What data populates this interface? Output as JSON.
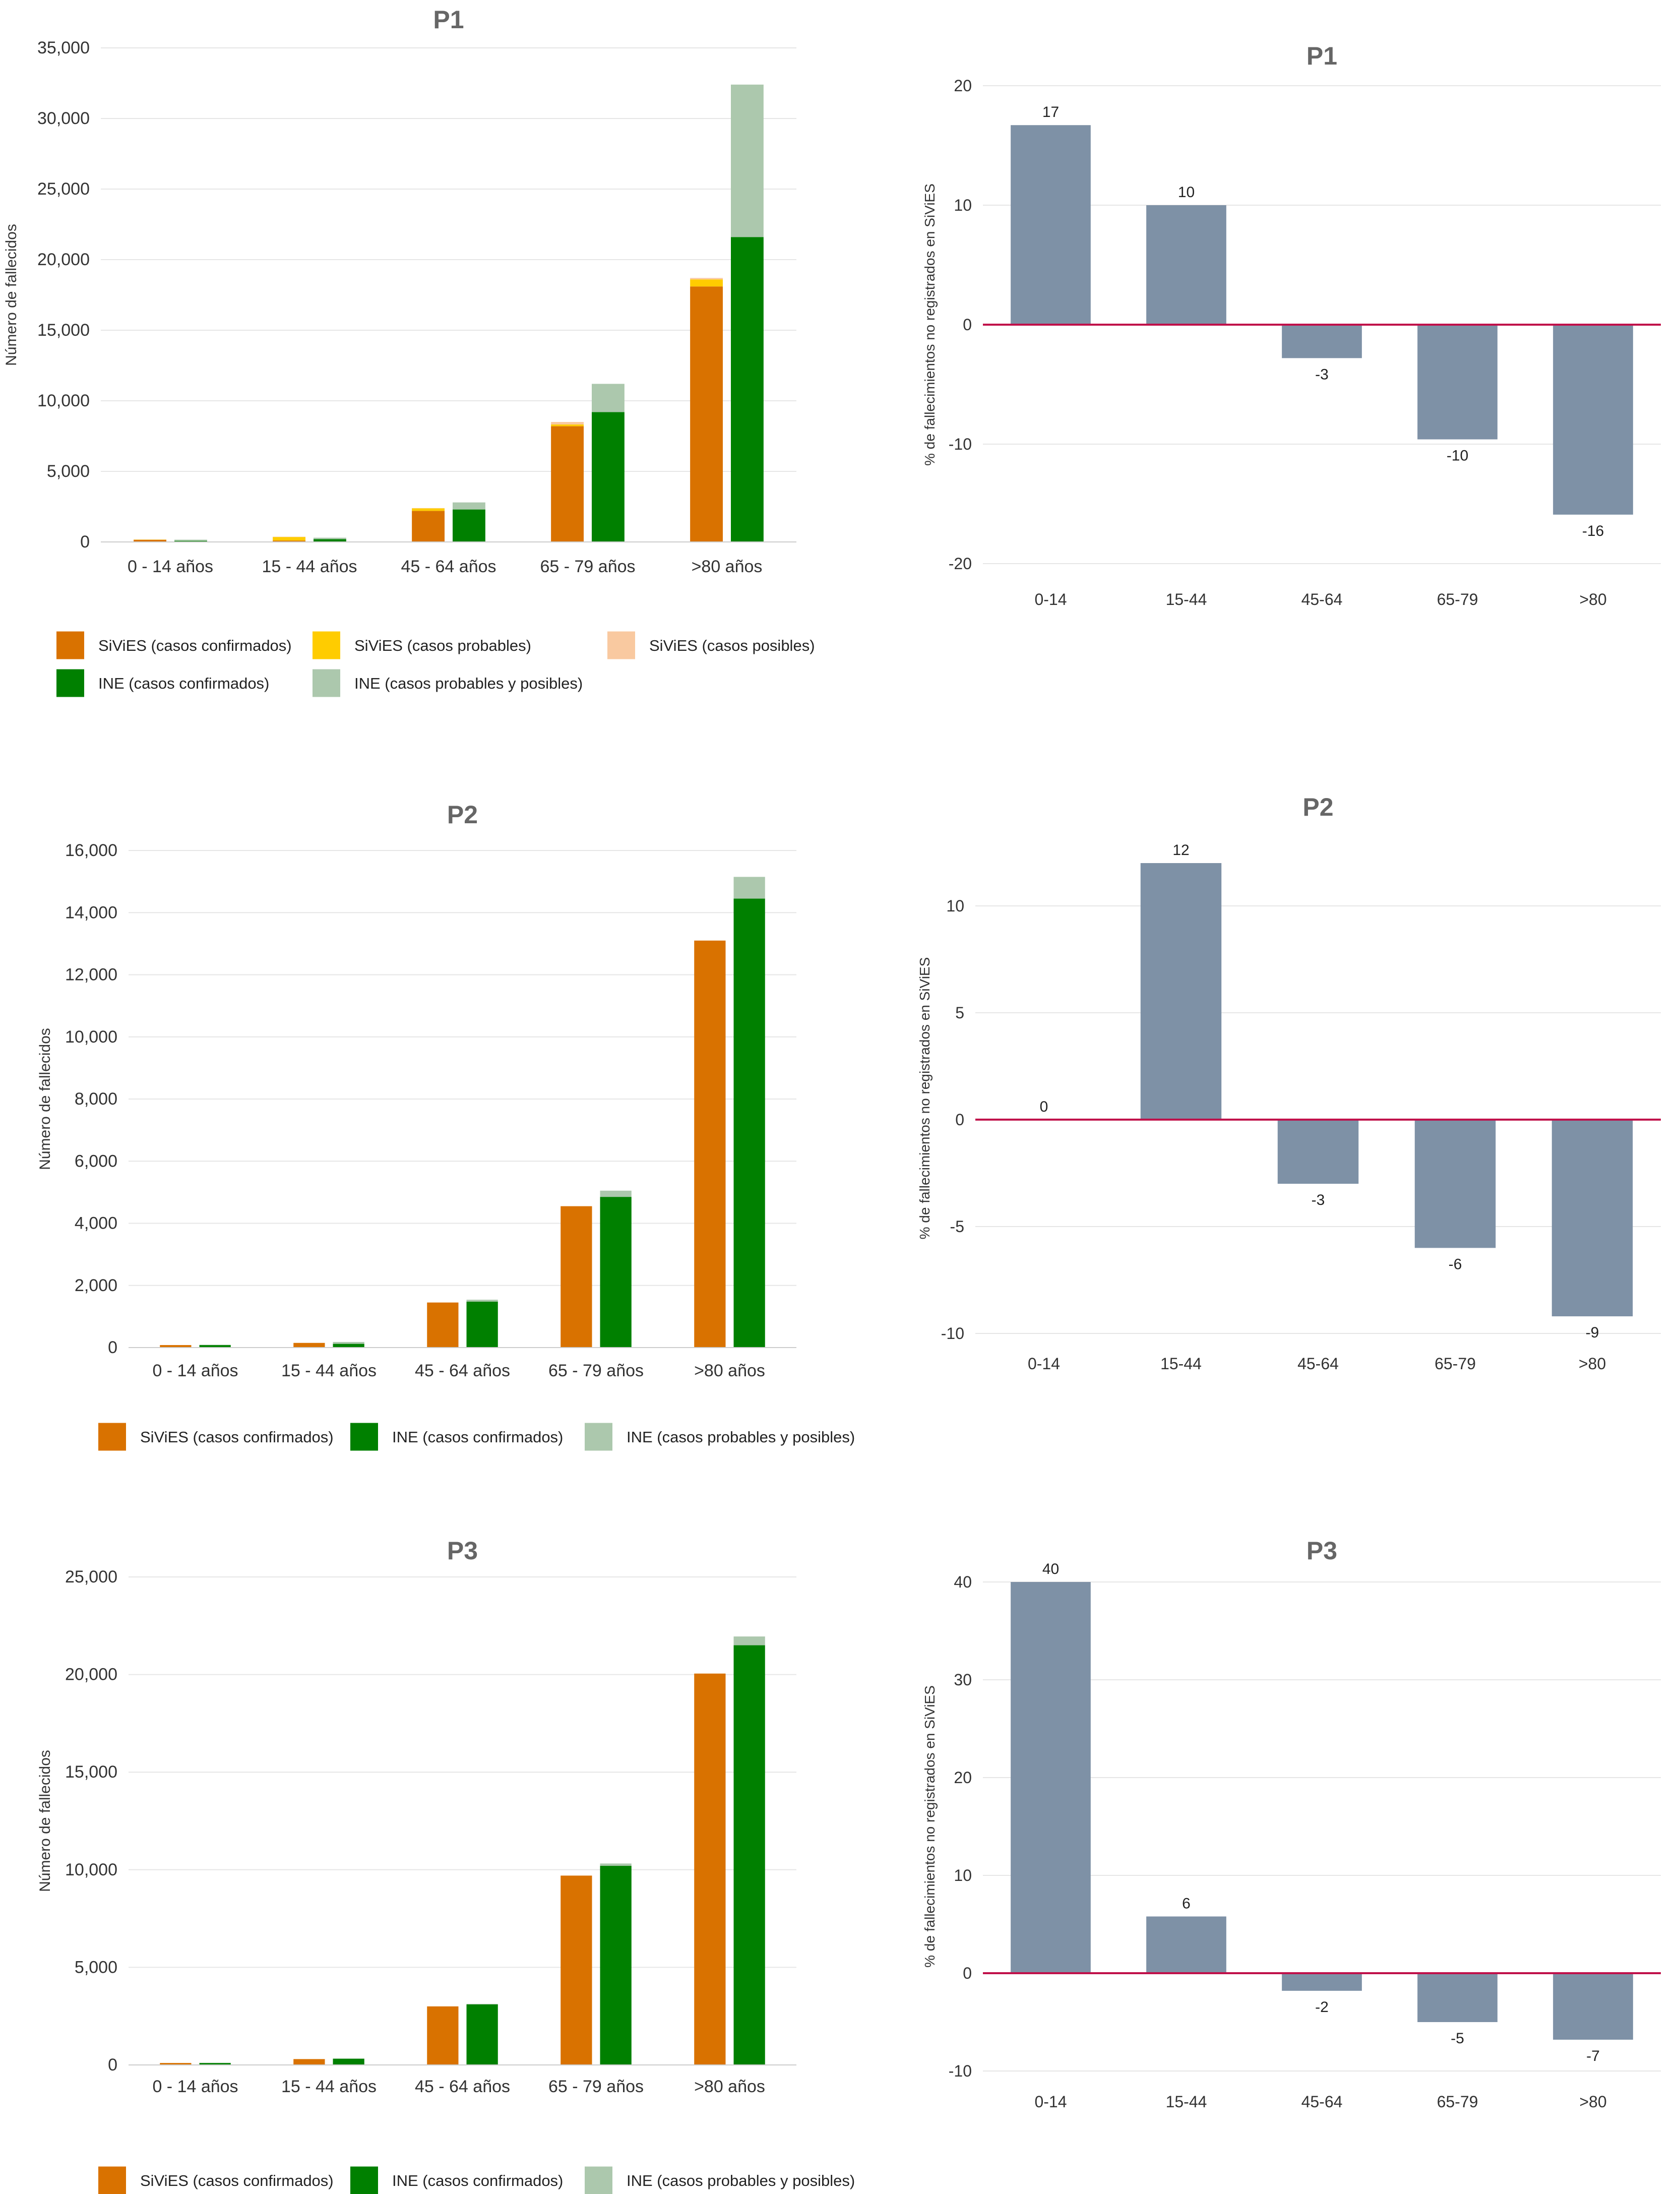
{
  "colors": {
    "sivies_confirmed": "#D97200",
    "sivies_probable": "#FFCC00",
    "sivies_possible": "#F9C9A0",
    "ine_confirmed": "#008000",
    "ine_probable_possible": "#ACC8AD",
    "diff_bar": "#7E91A6",
    "zero_line": "#C0104A",
    "grid": "#E6E6E6",
    "title": "#666666"
  },
  "legend_labels": {
    "sivies_confirmed": "SiViES (casos confirmados)",
    "sivies_probable": "SiViES (casos probables)",
    "sivies_possible": "SiViES (casos posibles)",
    "ine_confirmed": "INE (casos confirmados)",
    "ine_probable_possible": "INE (casos probables y posibles)"
  },
  "chart_data": [
    {
      "id": "p1_counts",
      "type": "bar",
      "title": "P1",
      "ylabel": "Número de fallecidos",
      "ylim": [
        0,
        35000
      ],
      "yticks": [
        "0",
        "5,000",
        "10,000",
        "15,000",
        "20,000",
        "25,000",
        "30,000",
        "35,000"
      ],
      "categories": [
        "0 - 14 años",
        "15 - 44 años",
        "45 - 64 años",
        "65 - 79 años",
        ">80 años"
      ],
      "series": [
        {
          "name": "SiViES (casos confirmados)",
          "key": "sivies_confirmed",
          "stack": "SiViES",
          "values": [
            150,
            100,
            2200,
            8200,
            18100
          ]
        },
        {
          "name": "SiViES (casos probables)",
          "key": "sivies_probable",
          "stack": "SiViES",
          "values": [
            20,
            250,
            180,
            120,
            500
          ]
        },
        {
          "name": "SiViES (casos posibles)",
          "key": "sivies_possible",
          "stack": "SiViES",
          "values": [
            10,
            20,
            20,
            180,
            100
          ]
        },
        {
          "name": "INE (casos confirmados)",
          "key": "ine_confirmed",
          "stack": "INE",
          "values": [
            80,
            200,
            2300,
            9200,
            21600
          ]
        },
        {
          "name": "INE (casos probables y posibles)",
          "key": "ine_probable_possible",
          "stack": "INE",
          "values": [
            80,
            100,
            500,
            2000,
            10800
          ]
        }
      ],
      "legend": [
        [
          "sivies_confirmed",
          "sivies_probable",
          "sivies_possible"
        ],
        [
          "ine_confirmed",
          "ine_probable_possible"
        ]
      ]
    },
    {
      "id": "p1_diff",
      "type": "bar",
      "title": "P1",
      "ylabel": "% de fallecimientos no registrados en SiViES",
      "ylim": [
        -20,
        20
      ],
      "yticks": [
        "-20",
        "-10",
        "0",
        "10",
        "20"
      ],
      "categories": [
        "0-14",
        "15-44",
        "45-64",
        "65-79",
        ">80"
      ],
      "values": [
        16.7,
        10,
        -2.8,
        -9.6,
        -15.9
      ],
      "data_labels": [
        "17",
        "10",
        "-3",
        "-10",
        "-16"
      ]
    },
    {
      "id": "p2_counts",
      "type": "bar",
      "title": "P2",
      "ylabel": "Número de fallecidos",
      "ylim": [
        0,
        16000
      ],
      "yticks": [
        "0",
        "2,000",
        "4,000",
        "6,000",
        "8,000",
        "10,000",
        "12,000",
        "14,000",
        "16,000"
      ],
      "categories": [
        "0 - 14 años",
        "15 - 44 años",
        "45 - 64 años",
        "65 - 79 años",
        ">80 años"
      ],
      "series": [
        {
          "name": "SiViES (casos confirmados)",
          "key": "sivies_confirmed",
          "stack": "SiViES",
          "values": [
            80,
            150,
            1450,
            4550,
            13100
          ]
        },
        {
          "name": "INE (casos confirmados)",
          "key": "ine_confirmed",
          "stack": "INE",
          "values": [
            80,
            120,
            1480,
            4850,
            14450
          ]
        },
        {
          "name": "INE (casos probables y posibles)",
          "key": "ine_probable_possible",
          "stack": "INE",
          "values": [
            10,
            60,
            60,
            200,
            700
          ]
        }
      ],
      "legend": [
        [
          "sivies_confirmed",
          "ine_confirmed",
          "ine_probable_possible"
        ]
      ]
    },
    {
      "id": "p2_diff",
      "type": "bar",
      "title": "P2",
      "ylabel": "% de fallecimientos no registrados en SiViES",
      "ylim": [
        -10,
        12
      ],
      "yticks": [
        "-10",
        "-5",
        "0",
        "5",
        "10"
      ],
      "categories": [
        "0-14",
        "15-44",
        "45-64",
        "65-79",
        ">80"
      ],
      "values": [
        0,
        12,
        -3,
        -6,
        -9.2
      ],
      "data_labels": [
        "0",
        "12",
        "-3",
        "-6",
        "-9"
      ]
    },
    {
      "id": "p3_counts",
      "type": "bar",
      "title": "P3",
      "ylabel": "Número de fallecidos",
      "ylim": [
        0,
        25000
      ],
      "yticks": [
        "0",
        "5,000",
        "10,000",
        "15,000",
        "20,000",
        "25,000"
      ],
      "categories": [
        "0 - 14 años",
        "15 - 44 años",
        "45 - 64 años",
        "65 - 79 años",
        ">80 años"
      ],
      "series": [
        {
          "name": "SiViES (casos confirmados)",
          "key": "sivies_confirmed",
          "stack": "SiViES",
          "values": [
            100,
            300,
            3000,
            9700,
            20050
          ]
        },
        {
          "name": "INE (casos confirmados)",
          "key": "ine_confirmed",
          "stack": "INE",
          "values": [
            100,
            320,
            3100,
            10200,
            21500
          ]
        },
        {
          "name": "INE (casos probables y posibles)",
          "key": "ine_probable_possible",
          "stack": "INE",
          "values": [
            10,
            10,
            30,
            120,
            450
          ]
        }
      ],
      "legend": [
        [
          "sivies_confirmed",
          "ine_confirmed",
          "ine_probable_possible"
        ]
      ]
    },
    {
      "id": "p3_diff",
      "type": "bar",
      "title": "P3",
      "ylabel": "% de fallecimientos no registrados en SiViES",
      "ylim": [
        -10,
        40
      ],
      "yticks": [
        "-10",
        "0",
        "10",
        "20",
        "30",
        "40"
      ],
      "categories": [
        "0-14",
        "15-44",
        "45-64",
        "65-79",
        ">80"
      ],
      "values": [
        40,
        5.8,
        -1.8,
        -5,
        -6.8
      ],
      "data_labels": [
        "40",
        "6",
        "-2",
        "-5",
        "-7"
      ]
    }
  ]
}
